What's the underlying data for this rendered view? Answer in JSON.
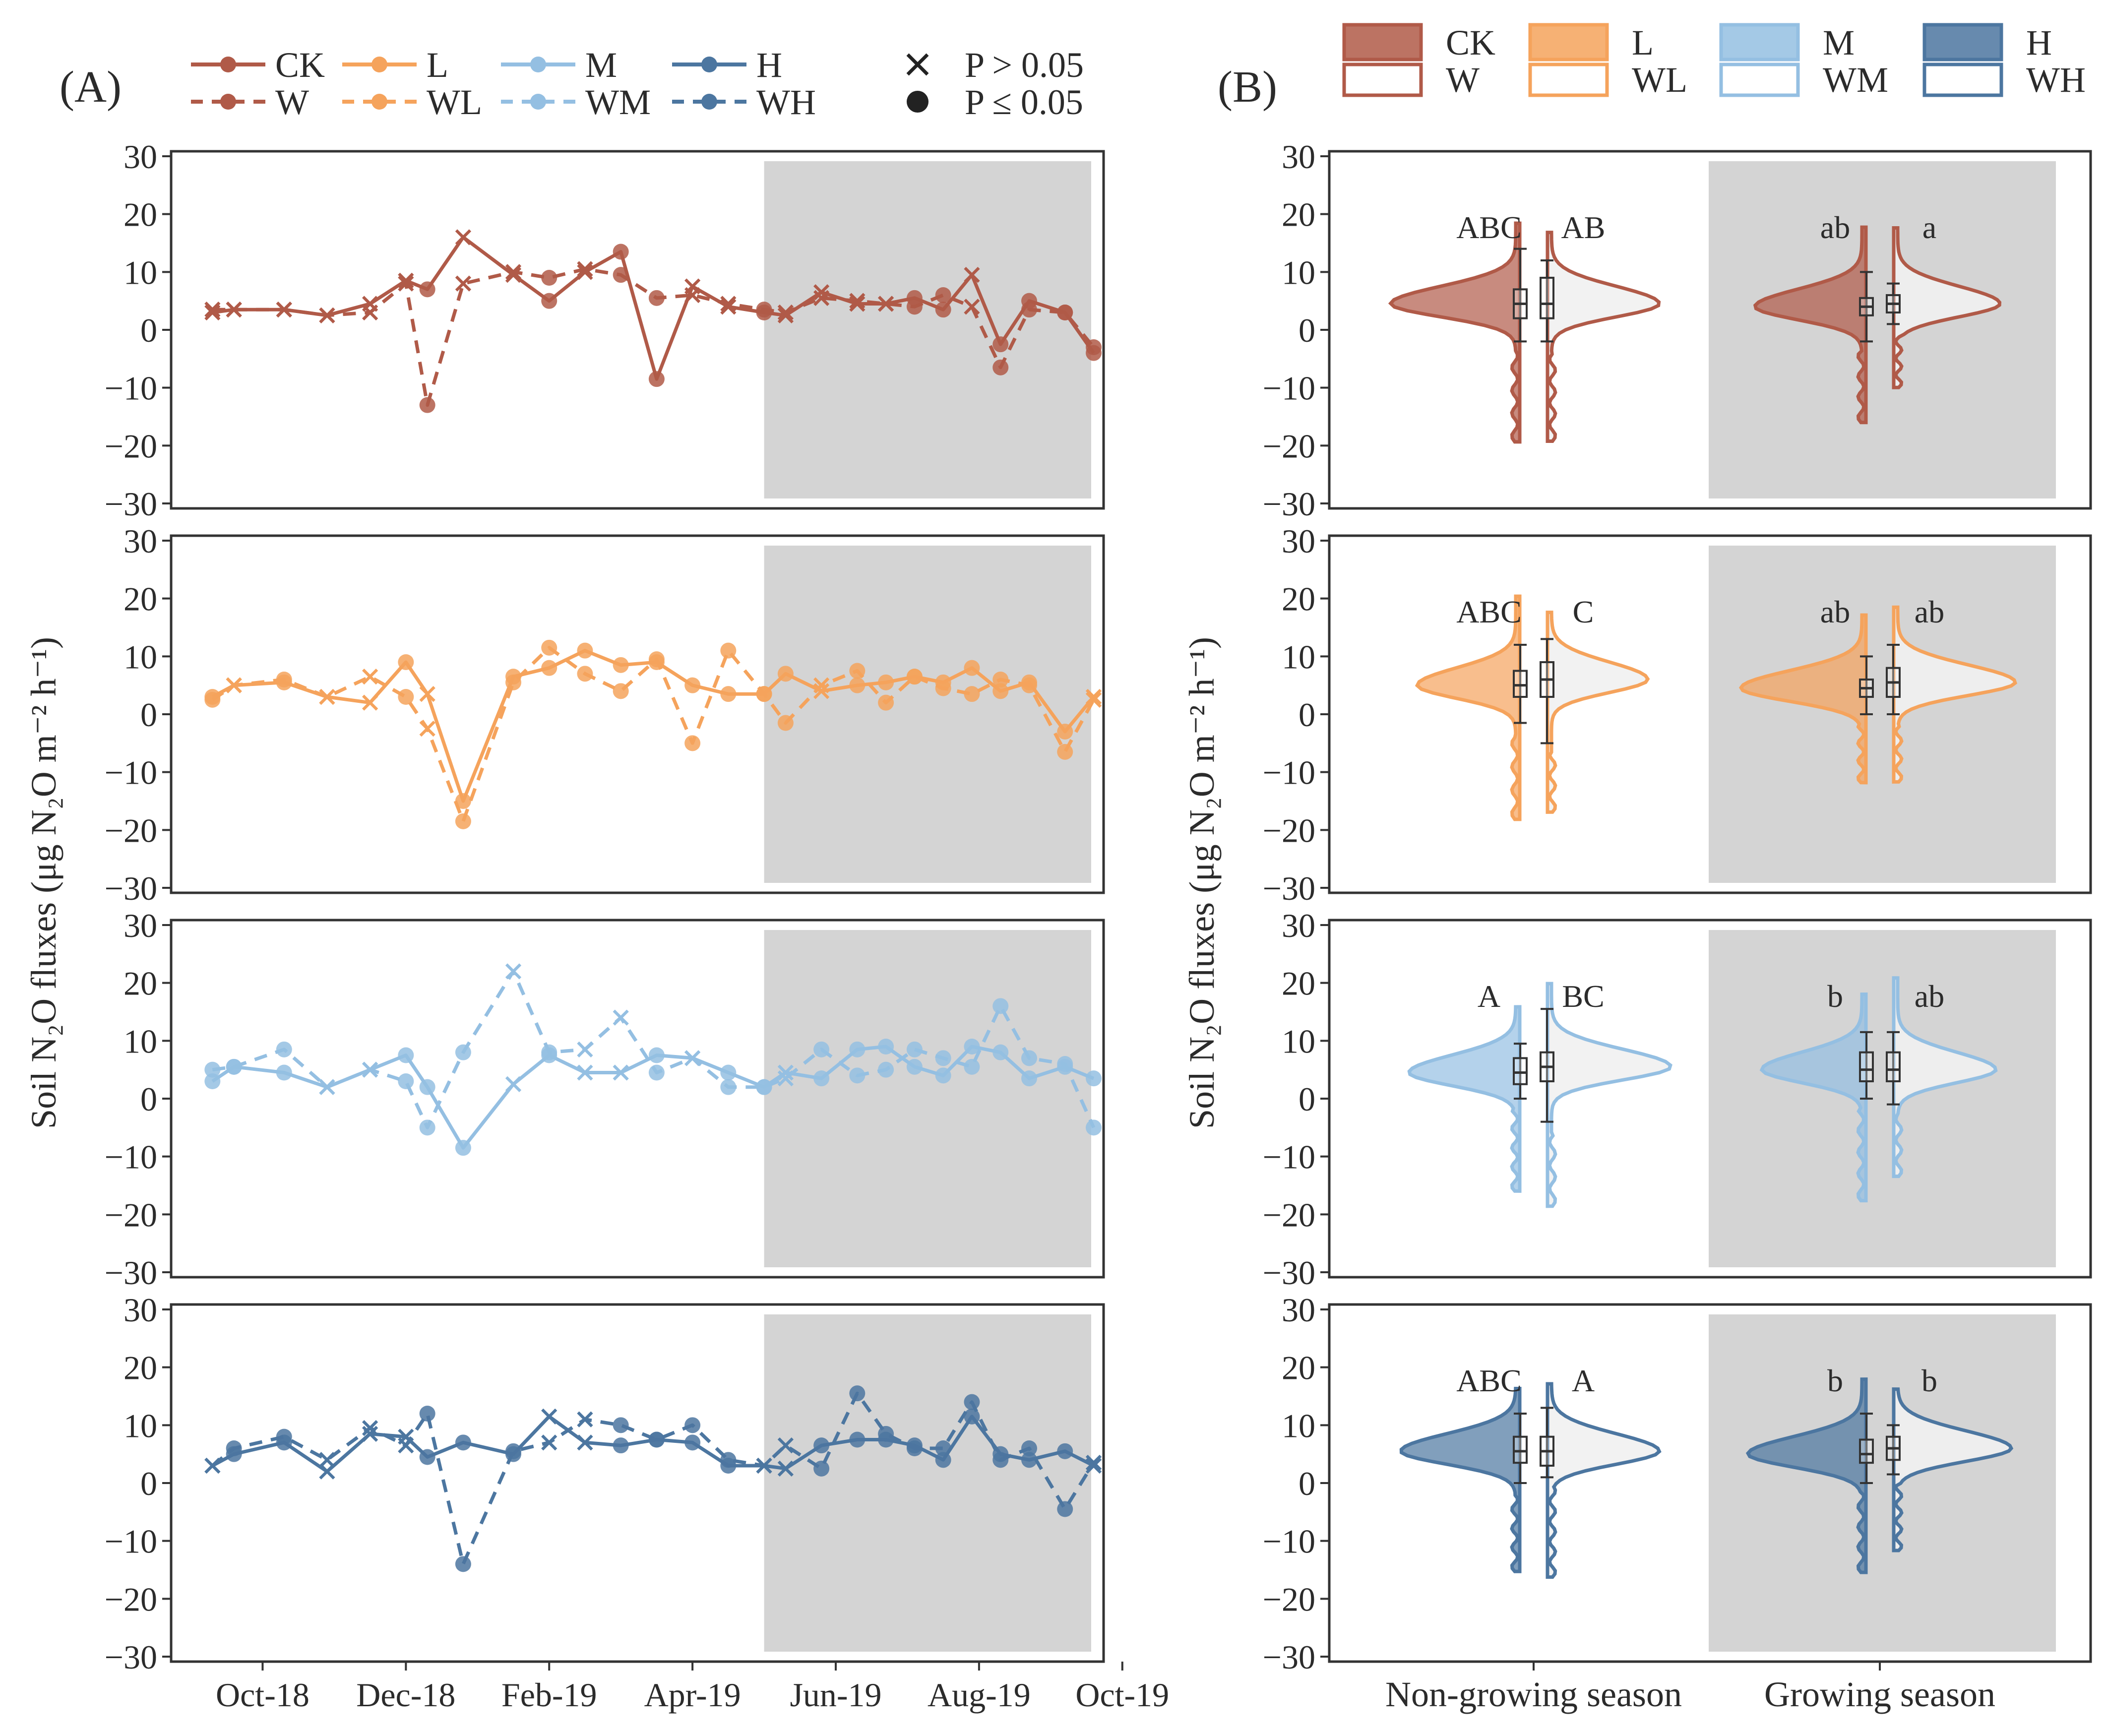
{
  "panel_labels": {
    "a": "(A)",
    "b": "(B)"
  },
  "ylabel": "Soil N₂O fluxes (μg N₂O m⁻² h⁻¹)",
  "legend_a": {
    "series_solid": [
      "CK",
      "L",
      "M",
      "H"
    ],
    "series_dashed": [
      "W",
      "WL",
      "WM",
      "WH"
    ],
    "sig_cross": "P > 0.05",
    "sig_dot": "P ≤ 0.05"
  },
  "legend_b": {
    "fill_labels": [
      "CK",
      "L",
      "M",
      "H"
    ],
    "open_labels": [
      "W",
      "WL",
      "WM",
      "WH"
    ]
  },
  "colors": {
    "CK": "#b05a48",
    "L": "#f5a35c",
    "M": "#94bfe2",
    "H": "#4c76a0",
    "shade": "#d4d4d4",
    "axis": "#333333",
    "box": "#333333"
  },
  "chart_data": [
    {
      "type": "line",
      "title": "(A)",
      "ylabel": "Soil N₂O fluxes (μg N₂O m⁻² h⁻¹)",
      "ylim": [
        -30,
        30
      ],
      "yticks": [
        -30,
        -20,
        -10,
        0,
        10,
        20,
        30
      ],
      "xlim_months": [
        0,
        12.6
      ],
      "xtick_pos": [
        1,
        3,
        5,
        7,
        9,
        11,
        13
      ],
      "xtick_labels": [
        "Oct-18",
        "Dec-18",
        "Feb-19",
        "Apr-19",
        "Jun-19",
        "Aug-19",
        "Oct-19"
      ],
      "growing_season_start_month": 8,
      "x": [
        0.3,
        0.6,
        1.3,
        1.9,
        2.5,
        3.0,
        3.3,
        3.8,
        4.5,
        5.0,
        5.5,
        6.0,
        6.5,
        7.0,
        7.5,
        8.0,
        8.3,
        8.8,
        9.3,
        9.7,
        10.1,
        10.5,
        10.9,
        11.3,
        11.7,
        12.2,
        12.6
      ],
      "growing_season_start_x_note": "shaded region spans growing season",
      "panels": [
        {
          "pair": [
            "CK",
            "W"
          ],
          "series": [
            {
              "name": "CK",
              "values": [
                3,
                3.5,
                3.5,
                2.5,
                4.5,
                8.5,
                7,
                16,
                9.5,
                5,
                10,
                13.5,
                -8.5,
                7.5,
                4,
                3,
                2.5,
                6.5,
                4.5,
                4.5,
                5.5,
                3.5,
                9.5,
                -2.5,
                5,
                3,
                -4
              ]
            },
            {
              "name": "W",
              "values": [
                3.5,
                3.5,
                3.5,
                2.5,
                3,
                8,
                -13,
                8,
                10,
                9,
                10.5,
                9.5,
                5.5,
                6,
                4.5,
                3.5,
                3,
                5.5,
                5,
                4.5,
                4,
                6,
                4,
                -6.5,
                3.5,
                3,
                -3
              ]
            }
          ],
          "sig": [
            "x",
            "x",
            "x",
            "x",
            "x",
            "x",
            "o",
            "x",
            "x",
            "o",
            "x",
            "o",
            "o",
            "x",
            "x",
            "o",
            "x",
            "x",
            "x",
            "x",
            "o",
            "o",
            "x",
            "o",
            "o",
            "o",
            "o"
          ]
        },
        {
          "pair": [
            "L",
            "WL"
          ],
          "series": [
            {
              "name": "L",
              "values": [
                3,
                5,
                5.5,
                3,
                2,
                9,
                3.5,
                -15,
                6.5,
                8,
                11,
                8.5,
                9,
                5,
                3.5,
                3.5,
                7,
                4,
                5,
                5.5,
                6.5,
                5.5,
                8,
                4,
                5.5,
                -3,
                3
              ]
            },
            {
              "name": "WL",
              "values": [
                2.5,
                5,
                6,
                3,
                6.5,
                3,
                -2.5,
                -18.5,
                5.5,
                11.5,
                7,
                4,
                9.5,
                -5,
                11,
                3.5,
                -1.5,
                5,
                7.5,
                2,
                6.5,
                4.5,
                3.5,
                6,
                5,
                -6.5,
                2.5
              ]
            }
          ],
          "sig": [
            "o",
            "x",
            "o",
            "x",
            "x",
            "o",
            "x",
            "o",
            "o",
            "o",
            "o",
            "o",
            "o",
            "o",
            "o",
            "o",
            "o",
            "x",
            "o",
            "o",
            "o",
            "o",
            "o",
            "o",
            "o",
            "o",
            "x"
          ]
        },
        {
          "pair": [
            "M",
            "WM"
          ],
          "series": [
            {
              "name": "M",
              "values": [
                3,
                5.5,
                4.5,
                2,
                5,
                7.5,
                2,
                -8.5,
                2.5,
                7.5,
                4.5,
                4.5,
                7.5,
                7,
                4.5,
                2,
                4.5,
                3.5,
                8.5,
                9,
                5.5,
                4,
                9,
                8,
                3.5,
                5.5,
                3.5
              ]
            },
            {
              "name": "WM",
              "values": [
                5,
                5.5,
                8.5,
                2,
                5,
                3,
                -5,
                8,
                22,
                8,
                8.5,
                14,
                4.5,
                7,
                2,
                2,
                3.5,
                8.5,
                4,
                5,
                8.5,
                7,
                5.5,
                16,
                7,
                6,
                -5
              ]
            }
          ],
          "sig": [
            "o",
            "o",
            "o",
            "x",
            "x",
            "o",
            "o",
            "o",
            "x",
            "o",
            "x",
            "x",
            "o",
            "x",
            "o",
            "o",
            "x",
            "o",
            "o",
            "o",
            "o",
            "o",
            "o",
            "o",
            "o",
            "o",
            "o"
          ]
        },
        {
          "pair": [
            "H",
            "WH"
          ],
          "series": [
            {
              "name": "H",
              "values": [
                3,
                5,
                7,
                2,
                8.5,
                8,
                4.5,
                7,
                5,
                11.5,
                7,
                6.5,
                7.5,
                7,
                3,
                3,
                2.5,
                6.5,
                7.5,
                7.5,
                6.5,
                4,
                11.5,
                5,
                4,
                5.5,
                3
              ]
            },
            {
              "name": "WH",
              "values": [
                3,
                6,
                8,
                4,
                9.5,
                6.5,
                12,
                -14,
                5.5,
                7,
                11,
                10,
                7.5,
                10,
                4,
                3,
                6.5,
                2.5,
                15.5,
                8.5,
                6,
                6,
                14,
                4,
                6,
                -4.5,
                3.5
              ]
            }
          ],
          "sig": [
            "x",
            "o",
            "o",
            "x",
            "x",
            "x",
            "o",
            "o",
            "o",
            "x",
            "x",
            "o",
            "o",
            "o",
            "o",
            "x",
            "x",
            "o",
            "o",
            "o",
            "o",
            "o",
            "o",
            "o",
            "o",
            "o",
            "x"
          ]
        }
      ]
    },
    {
      "type": "violin",
      "title": "(B)",
      "ylabel": "Soil N₂O fluxes (μg N₂O m⁻² h⁻¹)",
      "ylim": [
        -30,
        30
      ],
      "yticks": [
        -30,
        -20,
        -10,
        0,
        10,
        20,
        30
      ],
      "categories": [
        "Non-growing season",
        "Growing season"
      ],
      "panels": [
        {
          "pair": [
            "CK",
            "W"
          ],
          "letters": [
            [
              "ABC",
              "AB"
            ],
            [
              "ab",
              "a"
            ]
          ],
          "box": [
            [
              {
                "q1": 2,
                "med": 4.5,
                "q3": 7,
                "lo": -2,
                "hi": 14
              },
              {
                "q1": 2,
                "med": 4.5,
                "q3": 9,
                "lo": -2,
                "hi": 12
              }
            ],
            [
              {
                "q1": 2.5,
                "med": 4,
                "q3": 5.5,
                "lo": -2,
                "hi": 10
              },
              {
                "q1": 3,
                "med": 4.5,
                "q3": 6,
                "lo": 1,
                "hi": 8
              }
            ]
          ]
        },
        {
          "pair": [
            "L",
            "WL"
          ],
          "letters": [
            [
              "ABC",
              "C"
            ],
            [
              "ab",
              "ab"
            ]
          ],
          "box": [
            [
              {
                "q1": 3,
                "med": 5,
                "q3": 7.5,
                "lo": -1.5,
                "hi": 12
              },
              {
                "q1": 3,
                "med": 6,
                "q3": 9,
                "lo": -5,
                "hi": 13
              }
            ],
            [
              {
                "q1": 3,
                "med": 4.5,
                "q3": 6,
                "lo": 0,
                "hi": 10
              },
              {
                "q1": 3,
                "med": 5.5,
                "q3": 8,
                "lo": 0,
                "hi": 12
              }
            ]
          ]
        },
        {
          "pair": [
            "M",
            "WM"
          ],
          "letters": [
            [
              "A",
              "BC"
            ],
            [
              "b",
              "ab"
            ]
          ],
          "box": [
            [
              {
                "q1": 2.5,
                "med": 4.5,
                "q3": 7,
                "lo": 0,
                "hi": 9.5
              },
              {
                "q1": 3,
                "med": 5.5,
                "q3": 8,
                "lo": -4,
                "hi": 15.5
              }
            ],
            [
              {
                "q1": 3,
                "med": 5,
                "q3": 8,
                "lo": 0,
                "hi": 11.5
              },
              {
                "q1": 3,
                "med": 5,
                "q3": 8,
                "lo": -1,
                "hi": 11.5
              }
            ]
          ]
        },
        {
          "pair": [
            "H",
            "WH"
          ],
          "letters": [
            [
              "ABC",
              "A"
            ],
            [
              "b",
              "b"
            ]
          ],
          "box": [
            [
              {
                "q1": 3.5,
                "med": 5.5,
                "q3": 8,
                "lo": 0,
                "hi": 12
              },
              {
                "q1": 3,
                "med": 5.5,
                "q3": 8,
                "lo": 1,
                "hi": 13
              }
            ],
            [
              {
                "q1": 3.5,
                "med": 5,
                "q3": 7.5,
                "lo": 0,
                "hi": 12
              },
              {
                "q1": 4,
                "med": 6,
                "q3": 8,
                "lo": 1.5,
                "hi": 10
              }
            ]
          ]
        }
      ]
    }
  ]
}
